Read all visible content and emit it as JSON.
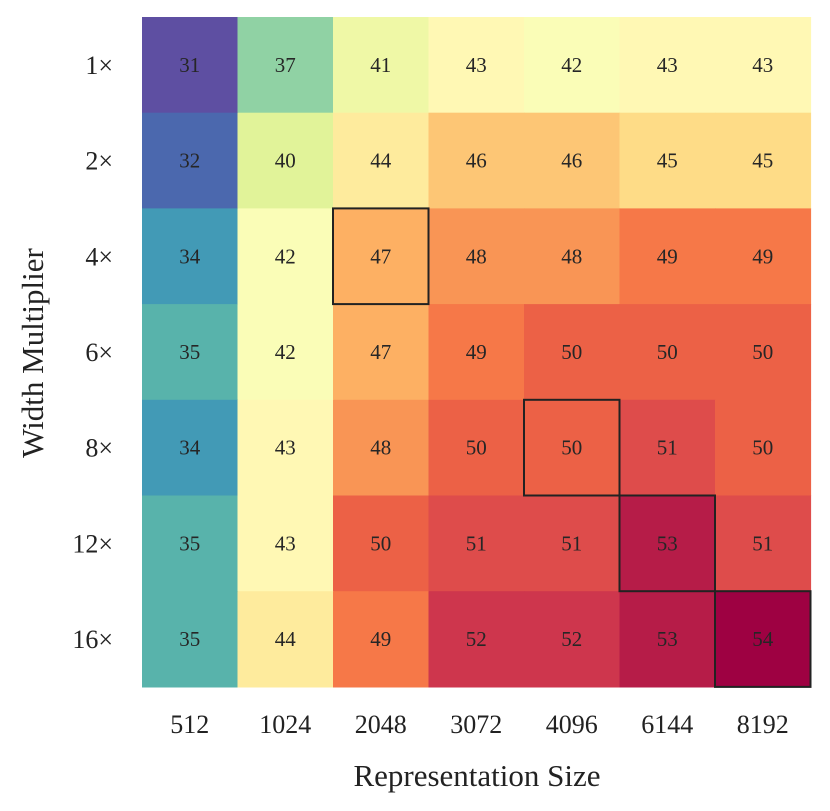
{
  "chart_data": {
    "type": "heatmap",
    "xlabel": "Representation Size",
    "ylabel": "Width Multiplier",
    "x_categories": [
      "512",
      "1024",
      "2048",
      "3072",
      "4096",
      "6144",
      "8192"
    ],
    "y_categories": [
      "1×",
      "2×",
      "4×",
      "6×",
      "8×",
      "12×",
      "16×"
    ],
    "values": [
      [
        31,
        37,
        41,
        43,
        42,
        43,
        43
      ],
      [
        32,
        40,
        44,
        46,
        46,
        45,
        45
      ],
      [
        34,
        42,
        47,
        48,
        48,
        49,
        49
      ],
      [
        35,
        42,
        47,
        49,
        50,
        50,
        50
      ],
      [
        34,
        43,
        48,
        50,
        50,
        51,
        50
      ],
      [
        35,
        43,
        50,
        51,
        51,
        53,
        51
      ],
      [
        35,
        44,
        49,
        52,
        52,
        53,
        54
      ]
    ],
    "highlighted_cells": [
      [
        2,
        2
      ],
      [
        4,
        4
      ],
      [
        5,
        5
      ],
      [
        6,
        6
      ]
    ],
    "colormap": "Spectral_r",
    "vmin": 31,
    "vmax": 54
  }
}
